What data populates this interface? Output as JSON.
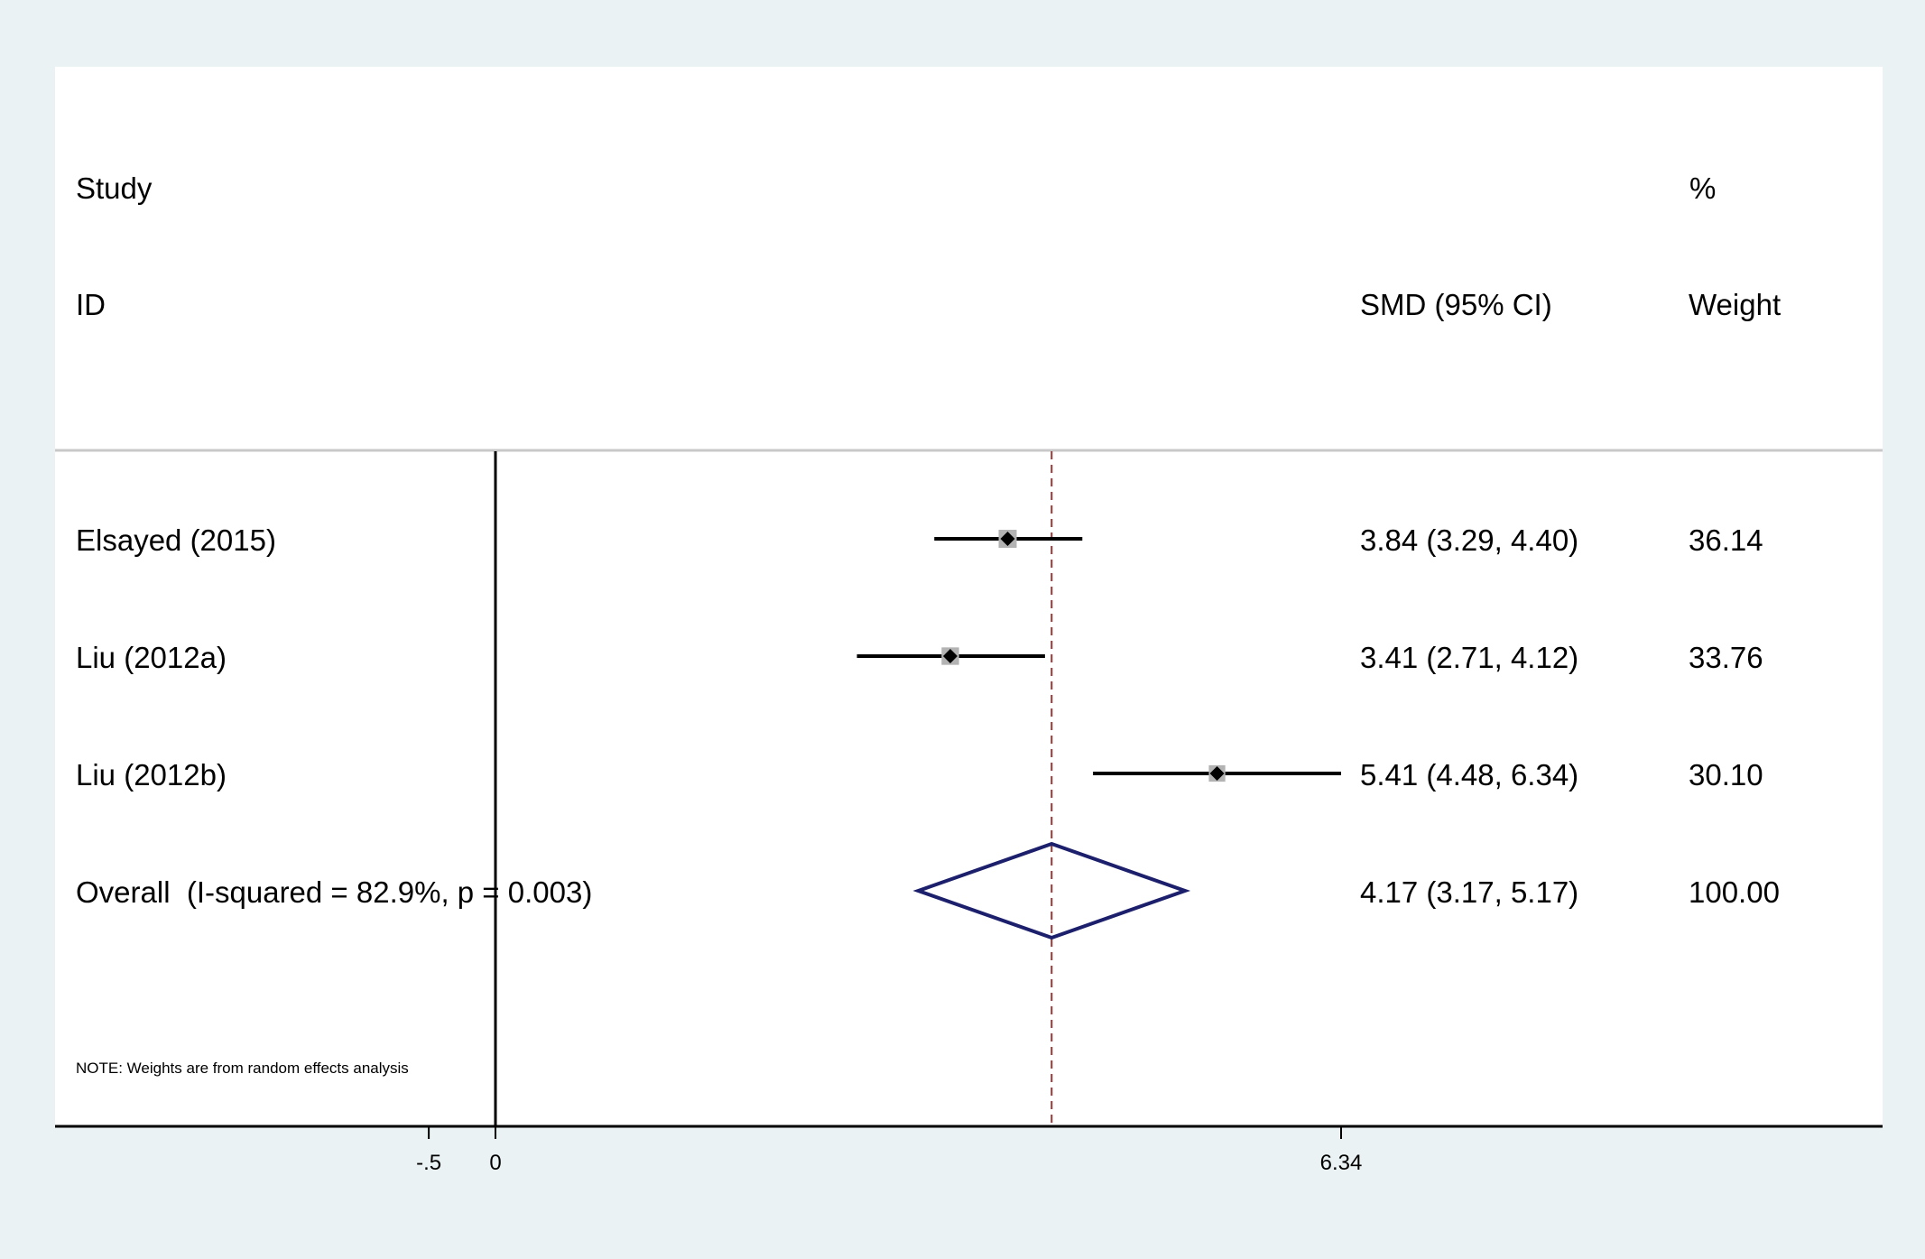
{
  "chart_data": {
    "type": "forest",
    "header": {
      "study_line1": "Study",
      "study_line2": "ID",
      "effect_label": "SMD (95% CI)",
      "weight_line1": "%",
      "weight_line2": "Weight"
    },
    "studies": [
      {
        "label": "Elsayed (2015)",
        "smd": 3.84,
        "lower": 3.29,
        "upper": 4.4,
        "ci_text": "3.84 (3.29, 4.40)",
        "weight": 36.14,
        "weight_text": "36.14"
      },
      {
        "label": "Liu (2012a)",
        "smd": 3.41,
        "lower": 2.71,
        "upper": 4.12,
        "ci_text": "3.41 (2.71, 4.12)",
        "weight": 33.76,
        "weight_text": "33.76"
      },
      {
        "label": "Liu (2012b)",
        "smd": 5.41,
        "lower": 4.48,
        "upper": 6.34,
        "ci_text": "5.41 (4.48, 6.34)",
        "weight": 30.1,
        "weight_text": "30.10"
      }
    ],
    "overall": {
      "label": "Overall  (I-squared = 82.9%, p = 0.003)",
      "smd": 4.17,
      "lower": 3.17,
      "upper": 5.17,
      "ci_text": "4.17 (3.17, 5.17)",
      "weight_text": "100.00"
    },
    "note": "NOTE: Weights are from random effects analysis",
    "x_ticks": [
      {
        "value": -0.5,
        "label": "-.5"
      },
      {
        "value": 0,
        "label": "0"
      },
      {
        "value": 6.34,
        "label": "6.34"
      }
    ],
    "xlim": [
      -3.28,
      10.37
    ],
    "null_line": 0,
    "colors": {
      "marker": "#000000",
      "weight_box": "#b3b3b3",
      "diamond": "#1c1f6b",
      "overall_line": "#8b3a3a",
      "divider": "#c8c8c8"
    }
  }
}
